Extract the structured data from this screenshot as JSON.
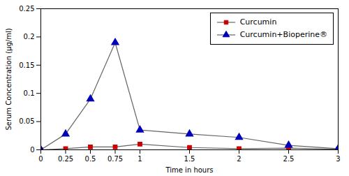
{
  "chart_data": {
    "type": "line",
    "xlabel": "Time in hours",
    "ylabel": "Serum Concentration (μg/ml)",
    "x": [
      0,
      0.25,
      0.5,
      0.75,
      1.0,
      1.5,
      2.0,
      2.5,
      3.0
    ],
    "series": [
      {
        "name": "Curcumin",
        "color": "#cc0000",
        "marker": "square",
        "values": [
          0,
          0.002,
          0.005,
          0.005,
          0.01,
          0.004,
          0.002,
          0.003,
          0.001
        ]
      },
      {
        "name": "Curcumin+Bioperine®",
        "color": "#0000bb",
        "marker": "triangle",
        "values": [
          0,
          0.028,
          0.09,
          0.19,
          0.035,
          0.028,
          0.022,
          0.008,
          0.002
        ]
      }
    ],
    "color": "#666666",
    "xlim": [
      0,
      3.0
    ],
    "ylim": [
      0,
      0.25
    ],
    "xticks": [
      0,
      0.25,
      0.5,
      0.75,
      1,
      1.5,
      2,
      2.5,
      3
    ],
    "yticks": [
      0,
      0.05,
      0.1,
      0.15,
      0.2,
      0.25
    ],
    "grid": false,
    "legend": "upper right"
  }
}
